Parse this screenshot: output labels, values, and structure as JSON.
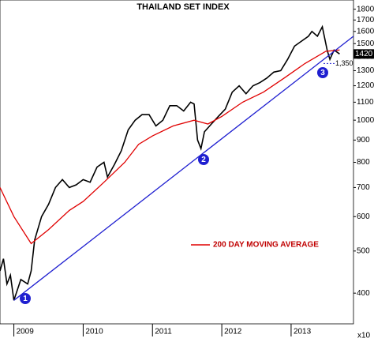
{
  "chart_data": {
    "type": "line",
    "title": "THAILAND SET INDEX",
    "log_scale": true,
    "xlim": [
      2008.8,
      2013.9
    ],
    "ylim": [
      340,
      1890
    ],
    "xticks": [
      2009,
      2010,
      2011,
      2012,
      2013
    ],
    "yticks": [
      400,
      500,
      600,
      700,
      800,
      900,
      1000,
      1100,
      1200,
      1300,
      1400,
      1500,
      1600,
      1700,
      1800
    ],
    "series": [
      {
        "name": "THAILAND SET INDEX",
        "color": "#000000",
        "x": [
          2008.8,
          2008.85,
          2008.9,
          2008.95,
          2009.0,
          2009.1,
          2009.2,
          2009.25,
          2009.3,
          2009.4,
          2009.5,
          2009.6,
          2009.7,
          2009.8,
          2009.9,
          2010.0,
          2010.1,
          2010.2,
          2010.3,
          2010.35,
          2010.45,
          2010.55,
          2010.65,
          2010.75,
          2010.85,
          2010.95,
          2011.05,
          2011.15,
          2011.25,
          2011.35,
          2011.45,
          2011.55,
          2011.6,
          2011.65,
          2011.7,
          2011.75,
          2011.85,
          2011.95,
          2012.05,
          2012.15,
          2012.25,
          2012.35,
          2012.45,
          2012.55,
          2012.65,
          2012.75,
          2012.85,
          2012.95,
          2013.05,
          2013.15,
          2013.25,
          2013.3,
          2013.38,
          2013.45,
          2013.52,
          2013.56,
          2013.62,
          2013.7
        ],
        "values": [
          450,
          480,
          420,
          440,
          385,
          430,
          420,
          450,
          530,
          600,
          640,
          700,
          730,
          700,
          710,
          730,
          720,
          780,
          800,
          740,
          790,
          850,
          950,
          1000,
          1030,
          1030,
          970,
          1000,
          1080,
          1080,
          1050,
          1100,
          1090,
          900,
          860,
          940,
          980,
          1020,
          1060,
          1160,
          1200,
          1150,
          1200,
          1220,
          1250,
          1290,
          1300,
          1380,
          1480,
          1520,
          1560,
          1600,
          1560,
          1640,
          1450,
          1380,
          1450,
          1420
        ]
      },
      {
        "name": "200 DAY MOVING AVERAGE",
        "color": "#e00000",
        "x": [
          2008.8,
          2009.0,
          2009.25,
          2009.5,
          2009.8,
          2010.0,
          2010.3,
          2010.6,
          2010.8,
          2011.0,
          2011.3,
          2011.6,
          2011.8,
          2012.0,
          2012.3,
          2012.6,
          2012.9,
          2013.2,
          2013.5,
          2013.7
        ],
        "values": [
          700,
          600,
          520,
          560,
          620,
          650,
          720,
          800,
          880,
          920,
          970,
          1000,
          980,
          1020,
          1100,
          1160,
          1250,
          1350,
          1440,
          1450
        ]
      },
      {
        "color": "#1f1fd0",
        "x": [
          2009.0,
          2013.9
        ],
        "values": [
          385,
          1560
        ]
      }
    ],
    "level_marker": {
      "value": 1350,
      "label": "1,350"
    },
    "last_price": 1420,
    "annotations": [
      "1",
      "2",
      "3"
    ],
    "scale_note": "x10"
  }
}
